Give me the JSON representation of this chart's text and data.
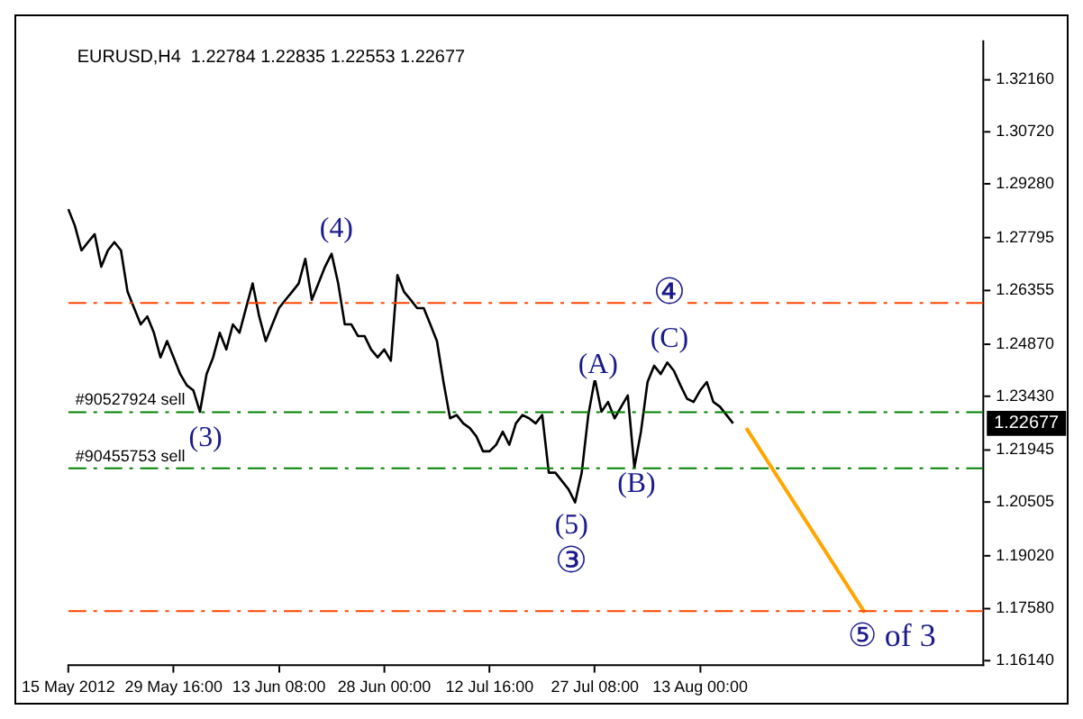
{
  "chart_data": {
    "type": "line",
    "title": "EURUSD,H4  1.22784 1.22835 1.22553 1.22677",
    "categories": [
      "15 May 2012",
      null,
      null,
      null,
      null,
      null,
      null,
      null,
      null,
      null,
      null,
      null,
      null,
      null,
      null,
      null,
      "29 May 16:00",
      null,
      null,
      null,
      null,
      null,
      null,
      null,
      null,
      null,
      null,
      null,
      null,
      null,
      null,
      null,
      "13 Jun 08:00",
      null,
      null,
      null,
      null,
      null,
      null,
      null,
      null,
      null,
      null,
      null,
      null,
      null,
      null,
      null,
      "28 Jun 00:00",
      null,
      null,
      null,
      null,
      null,
      null,
      null,
      null,
      null,
      null,
      null,
      null,
      null,
      null,
      null,
      "12 Jul 16:00",
      null,
      null,
      null,
      null,
      null,
      null,
      null,
      null,
      null,
      null,
      null,
      null,
      null,
      null,
      null,
      "27 Jul 08:00",
      null,
      null,
      null,
      null,
      null,
      null,
      null,
      null,
      null,
      null,
      null,
      null,
      null,
      null,
      null,
      "13 Aug 00:00",
      null,
      null,
      null,
      null,
      null,
      null,
      null,
      null,
      null,
      null,
      null,
      null,
      null,
      null,
      null,
      null,
      null,
      null,
      null,
      null,
      null,
      null,
      null,
      null,
      null,
      null,
      null,
      null,
      null,
      null,
      null,
      null,
      null,
      null,
      null,
      null,
      null,
      null,
      null,
      null,
      null,
      null,
      null
    ],
    "series": [
      {
        "type": "line",
        "color": "#000000",
        "values": [
          1.2859,
          1.2813,
          1.2745,
          1.2768,
          1.279,
          1.27,
          1.2745,
          1.2768,
          1.2745,
          1.2631,
          1.2586,
          1.2541,
          1.2563,
          1.2518,
          1.245,
          1.2495,
          1.245,
          1.2404,
          1.2373,
          1.2359,
          1.23,
          1.2404,
          1.245,
          1.2518,
          1.2472,
          1.2541,
          1.2518,
          1.2586,
          1.2654,
          1.2563,
          1.2495,
          1.2541,
          1.2586,
          1.2609,
          1.2631,
          1.2654,
          1.2722,
          1.2609,
          1.2654,
          1.27,
          1.2736,
          1.2654,
          1.2541,
          1.2541,
          1.2509,
          1.2509,
          1.2472,
          1.245,
          1.2472,
          1.2441,
          1.2677,
          1.2631,
          1.2609,
          1.2586,
          1.2586,
          1.2541,
          1.2495,
          1.2382,
          1.2282,
          1.2291,
          1.2268,
          1.2255,
          1.2232,
          1.2191,
          1.2191,
          1.2209,
          1.2245,
          1.2209,
          1.2268,
          1.2291,
          1.2282,
          1.2268,
          1.2291,
          1.2132,
          1.2132,
          1.2109,
          1.2086,
          1.205,
          1.2132,
          1.2291,
          1.2391,
          1.23,
          1.2327,
          1.2282,
          1.2314,
          1.2345,
          1.2146,
          1.2245,
          1.2382,
          1.2427,
          1.2404,
          1.2436,
          1.2413,
          1.2373,
          1.2336,
          1.2327,
          1.2359,
          1.2382,
          1.2327,
          1.2314,
          1.2291,
          1.2268,
          null,
          null,
          null,
          null,
          null,
          null,
          null,
          null,
          null,
          null,
          null,
          null,
          null,
          null,
          null,
          null,
          null,
          null,
          null,
          null,
          null,
          null,
          null,
          null,
          null,
          null,
          null,
          null,
          null,
          null,
          null,
          null,
          null,
          null,
          null,
          null,
          null,
          null
        ]
      },
      {
        "type": "line",
        "color": "#ffa500",
        "values": [
          null,
          null,
          null,
          null,
          null,
          null,
          null,
          null,
          null,
          null,
          null,
          null,
          null,
          null,
          null,
          null,
          null,
          null,
          null,
          null,
          null,
          null,
          null,
          null,
          null,
          null,
          null,
          null,
          null,
          null,
          null,
          null,
          null,
          null,
          null,
          null,
          null,
          null,
          null,
          null,
          null,
          null,
          null,
          null,
          null,
          null,
          null,
          null,
          null,
          null,
          null,
          null,
          null,
          null,
          null,
          null,
          null,
          null,
          null,
          null,
          null,
          null,
          null,
          null,
          null,
          null,
          null,
          null,
          null,
          null,
          null,
          null,
          null,
          null,
          null,
          null,
          null,
          null,
          null,
          null,
          null,
          null,
          null,
          null,
          null,
          null,
          null,
          null,
          null,
          null,
          null,
          null,
          null,
          null,
          null,
          null,
          null,
          null,
          null,
          null,
          null,
          null,
          null,
          1.2255,
          null,
          null,
          null,
          null,
          null,
          null,
          null,
          null,
          null,
          null,
          null,
          null,
          null,
          null,
          null,
          null,
          null,
          1.1746,
          null,
          null,
          null,
          null,
          null,
          null,
          null,
          null,
          null,
          null,
          null,
          null,
          null,
          null,
          null,
          null,
          null,
          null
        ]
      }
    ],
    "ylim": [
      1.16,
      1.3322
    ],
    "yticks": [
      {
        "value": 1.1614,
        "label": "1.16140"
      },
      {
        "value": 1.1758,
        "label": "1.17580"
      },
      {
        "value": 1.1902,
        "label": "1.19020"
      },
      {
        "value": 1.20505,
        "label": "1.20505"
      },
      {
        "value": 1.21945,
        "label": "1.21945"
      },
      {
        "value": 1.2343,
        "label": "1.23430"
      },
      {
        "value": 1.2487,
        "label": "1.24870"
      },
      {
        "value": 1.26355,
        "label": "1.26355"
      },
      {
        "value": 1.27795,
        "label": "1.27795"
      },
      {
        "value": 1.2928,
        "label": "1.29280"
      },
      {
        "value": 1.3072,
        "label": "1.30720"
      },
      {
        "value": 1.3216,
        "label": "1.32160"
      }
    ],
    "ref_lines": [
      {
        "axis": "y",
        "value": 1.26,
        "color": "#ff4500",
        "line_style": "dashed"
      },
      {
        "axis": "y",
        "value": 1.175,
        "color": "#ff4500",
        "line_style": "dashed"
      },
      {
        "axis": "y",
        "value": 1.2299,
        "label": "#90527924 sell",
        "color": "#008000",
        "line_style": "dashed"
      },
      {
        "axis": "y",
        "value": 1.2144,
        "label": "#90455753 sell",
        "color": "#008000",
        "line_style": "dashed"
      }
    ],
    "annotations": [
      "1.22677",
      "(4)",
      "(3)",
      "(A)",
      "(C)",
      "(B)",
      "(5)",
      "③",
      "④",
      "⑤ of 3"
    ],
    "grid": false,
    "legend": false,
    "marker": "none",
    "line_style": "solid"
  }
}
